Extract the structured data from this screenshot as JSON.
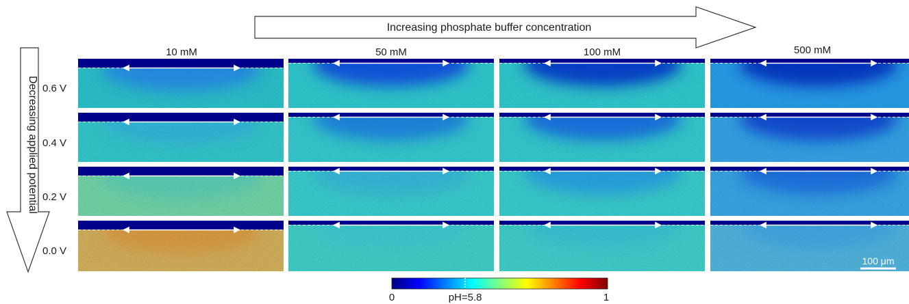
{
  "figure": {
    "top_arrow_label": "Increasing phosphate buffer concentration",
    "left_arrow_label": "Decreasing applied potential",
    "columns": [
      {
        "label": "10 mM"
      },
      {
        "label": "50 mM"
      },
      {
        "label": "100 mM"
      },
      {
        "label": "500 mM"
      }
    ],
    "rows": [
      {
        "label": "0.6 V"
      },
      {
        "label": "0.4 V"
      },
      {
        "label": "0.2 V"
      },
      {
        "label": "0.0 V"
      }
    ],
    "scale_bar_label": "100 μm",
    "colorbar": {
      "min_label": "0",
      "max_label": "1",
      "mid_label": "pH=5.8",
      "mid_position": 0.34,
      "colormap": [
        "#000080",
        "#0000ff",
        "#0080ff",
        "#00ffff",
        "#80ff80",
        "#ffff00",
        "#ff8000",
        "#ff0000",
        "#800000"
      ]
    },
    "colors": {
      "electrode_band": "#00008b",
      "arrow_stroke": "#333333",
      "dashed_line": "#ffffff"
    }
  }
}
